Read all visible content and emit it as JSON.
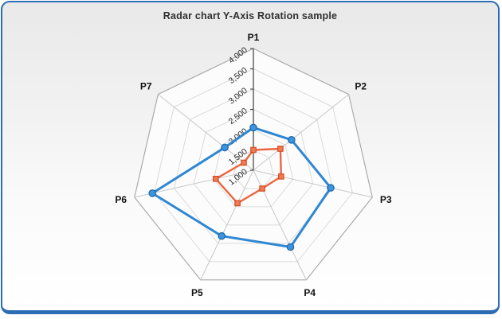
{
  "title": "Radar chart Y-Axis Rotation sample",
  "card": {
    "border_color": "#2B6CB5"
  },
  "chart_data": {
    "type": "radar",
    "title": "Radar chart Y-Axis Rotation sample",
    "categories": [
      "P1",
      "P2",
      "P3",
      "P4",
      "P5",
      "P6",
      "P7"
    ],
    "axis": {
      "min": 1000,
      "max": 4000,
      "tick_interval": 500,
      "tick_labels": [
        "1,000",
        "1,500",
        "2,000",
        "2,500",
        "3,000",
        "3,500",
        "4,000"
      ],
      "label_rotation_deg": -38
    },
    "grid": {
      "rings": true,
      "spokes": true
    },
    "legend": "none",
    "series": [
      {
        "marker": "circle",
        "color": "#2F87D3",
        "marker_fill": "#3D93DC",
        "marker_border": "#1B67A8",
        "values": [
          2050,
          2200,
          2950,
          3100,
          2800,
          3550,
          1900
        ]
      },
      {
        "marker": "square",
        "color": "#EB6540",
        "marker_fill": "#EE7B54",
        "marker_border": "#D64B22",
        "values": [
          1500,
          1850,
          1700,
          1500,
          1900,
          1950,
          1300
        ]
      }
    ]
  }
}
